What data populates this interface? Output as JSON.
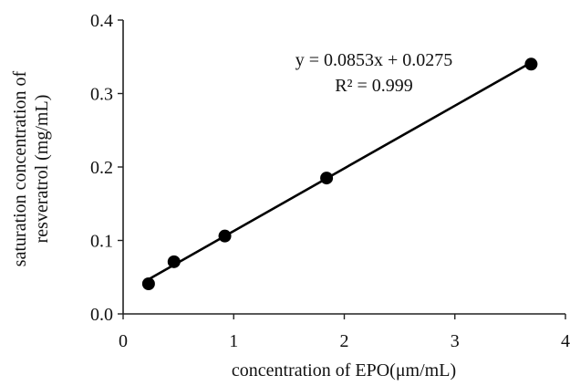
{
  "chart_data": {
    "type": "scatter",
    "title": "",
    "xlabel": "concentration of EPO(μm/mL)",
    "ylabel_lines": [
      "saturation concentration of",
      "resveratrol (mg/mL)"
    ],
    "xlim": [
      0,
      4
    ],
    "ylim": [
      0,
      0.4
    ],
    "x_ticks": [
      0,
      1,
      2,
      3,
      4
    ],
    "x_tick_labels": [
      "0",
      "1",
      "2",
      "3",
      "4"
    ],
    "y_ticks": [
      0,
      0.1,
      0.2,
      0.3,
      0.4
    ],
    "y_tick_labels": [
      "0.0",
      "0.1",
      "0.2",
      "0.3",
      "0.4"
    ],
    "grid": false,
    "legend": "none",
    "marker_color": "#000000",
    "series": [
      {
        "x": [
          0.23,
          0.46,
          0.92,
          1.84,
          3.69
        ],
        "y": [
          0.041,
          0.071,
          0.106,
          0.185,
          0.34
        ]
      }
    ],
    "trendline": {
      "slope": 0.0853,
      "intercept": 0.0275,
      "x_range": [
        0.23,
        3.69
      ],
      "equation_label": "y = 0.0853x + 0.0275",
      "r2_label": "R² = 0.999"
    }
  }
}
